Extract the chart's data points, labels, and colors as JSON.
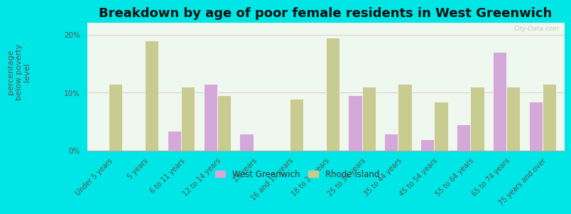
{
  "title": "Breakdown by age of poor female residents in West Greenwich",
  "ylabel": "percentage\nbelow poverty\nlevel",
  "categories": [
    "Under 5 years",
    "5 years",
    "6 to 11 years",
    "12 to 14 years",
    "15 years",
    "16 and 17 years",
    "18 to 24 years",
    "25 to 34 years",
    "35 to 44 years",
    "45 to 54 years",
    "55 to 64 years",
    "65 to 74 years",
    "75 years and over"
  ],
  "west_greenwich": [
    0,
    0,
    3.5,
    11.5,
    3.0,
    0,
    0,
    9.5,
    3.0,
    2.0,
    4.5,
    17.0,
    8.5
  ],
  "rhode_island": [
    11.5,
    19.0,
    11.0,
    9.5,
    0,
    9.0,
    19.5,
    11.0,
    11.5,
    8.5,
    11.0,
    11.0,
    11.5
  ],
  "wg_color": "#d4a8d8",
  "ri_color": "#c8cc90",
  "background_color": "#eef8ee",
  "outer_background": "#00e5e5",
  "ylim": [
    0,
    22
  ],
  "yticks": [
    0,
    10,
    20
  ],
  "ytick_labels": [
    "0%",
    "10%",
    "20%"
  ],
  "title_fontsize": 13,
  "axis_fontsize": 8,
  "tick_fontsize": 7.5,
  "legend_wg": "West Greenwich",
  "legend_ri": "Rhode Island",
  "watermark": "City-Data.com"
}
